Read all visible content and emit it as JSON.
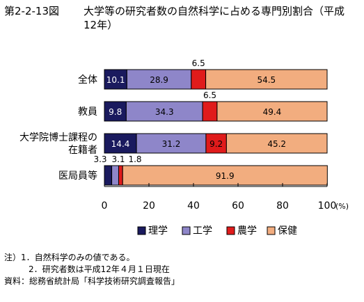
{
  "figure_number": "第2-2-13図",
  "figure_title": "大学等の研究者数の自然科学に占める専門別割合（平成12年）",
  "chart_data": {
    "type": "bar",
    "orientation": "horizontal",
    "stacked": true,
    "categories": [
      "全体",
      "教員",
      "大学院博士課程の在籍者",
      "医局員等"
    ],
    "category_label_lines": [
      [
        "全体"
      ],
      [
        "教員"
      ],
      [
        "大学院博士課程の",
        "在籍者"
      ],
      [
        "医局員等"
      ]
    ],
    "series": [
      {
        "name": "理学",
        "color": "#1a1a5e",
        "values": [
          10.1,
          9.8,
          14.4,
          3.3
        ],
        "value_labels": [
          "10.1",
          "9.8",
          "14.4",
          "3.3"
        ]
      },
      {
        "name": "工学",
        "color": "#8e86c9",
        "values": [
          28.9,
          34.3,
          31.2,
          3.1
        ],
        "value_labels": [
          "28.9",
          "34.3",
          "31.2",
          "3.1"
        ]
      },
      {
        "name": "農学",
        "color": "#e01b1b",
        "values": [
          6.5,
          6.5,
          9.2,
          1.8
        ],
        "value_labels": [
          "6.5",
          "6.5",
          "9.2",
          "1.8"
        ]
      },
      {
        "name": "保健",
        "color": "#f2ad7f",
        "values": [
          54.5,
          49.4,
          45.2,
          91.9
        ],
        "value_labels": [
          "54.5",
          "49.4",
          "45.2",
          "91.9"
        ]
      }
    ],
    "xlim": [
      0,
      100
    ],
    "x_ticks": [
      "0",
      "20",
      "40",
      "60",
      "80",
      "100"
    ],
    "x_unit": "(%)",
    "legend_position": "bottom-center",
    "grid": false
  },
  "notes": {
    "note_label": "注）",
    "note1": "1．自然科学のみの値である。",
    "note2": "2．研究者数は平成12年４月１日現在",
    "source": "資料：総務省統計局「科学技術研究調査報告」"
  }
}
